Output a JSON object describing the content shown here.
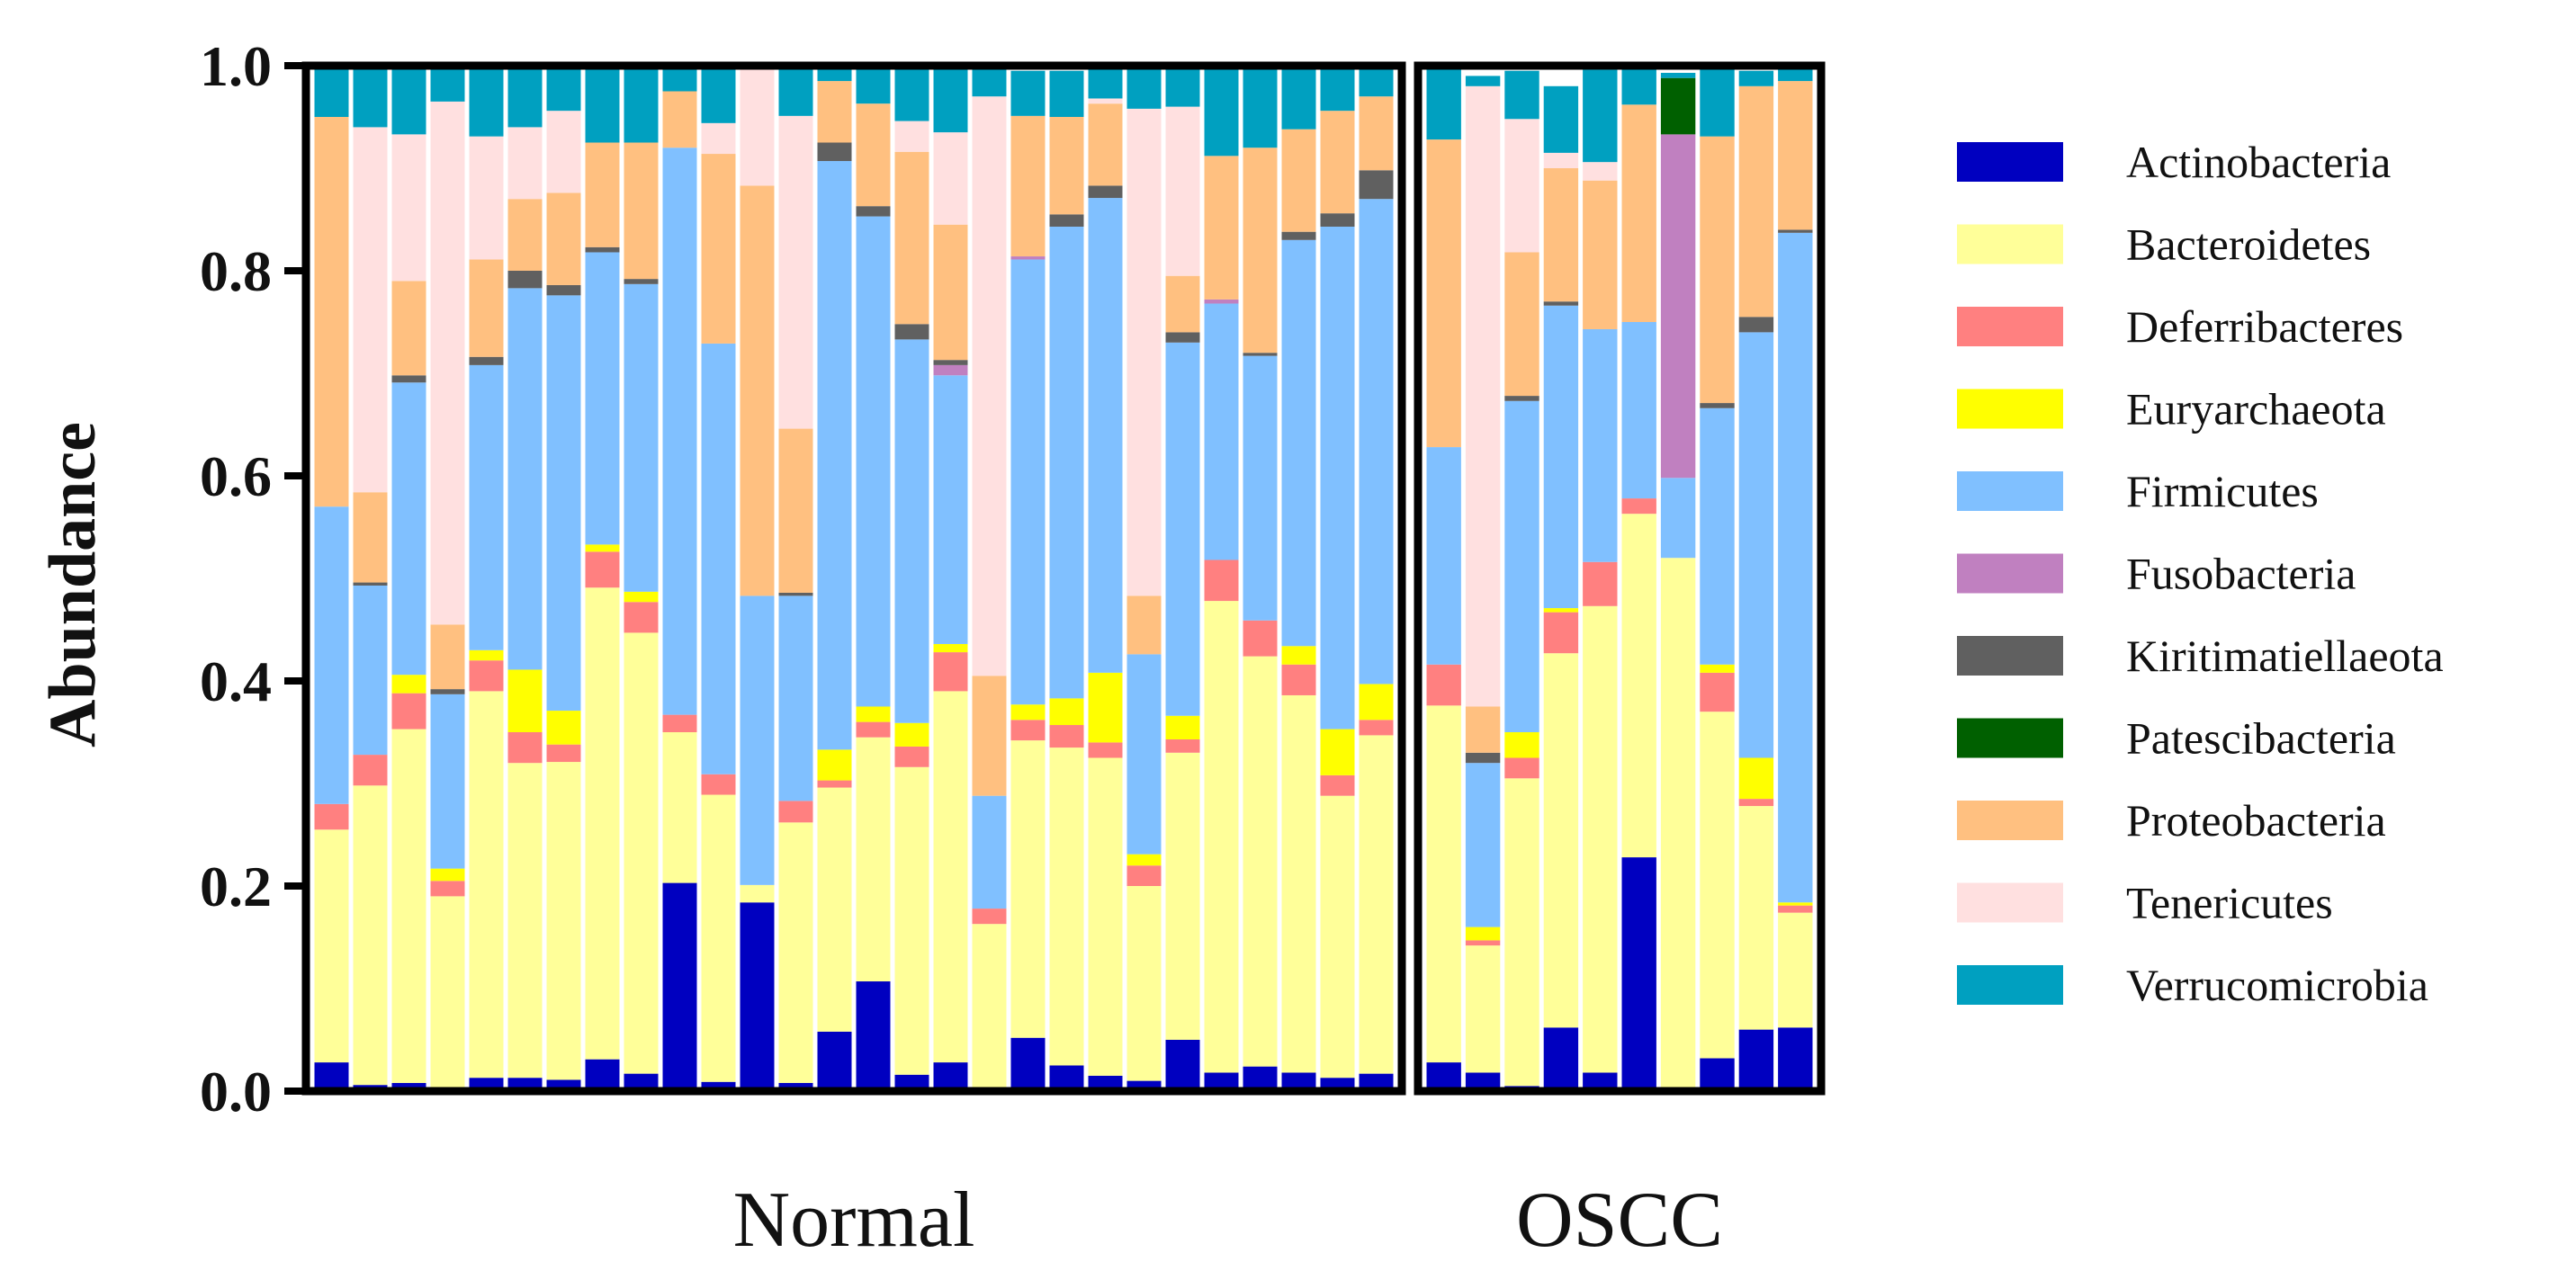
{
  "chart_data": {
    "type": "bar",
    "stacked": true,
    "ylabel": "Abundance",
    "ylim": [
      0,
      1.0
    ],
    "yticks": [
      "0.0",
      "0.2",
      "0.4",
      "0.6",
      "0.8",
      "1.0"
    ],
    "groups": [
      {
        "name": "Normal",
        "count": 28
      },
      {
        "name": "OSCC",
        "count": 10
      }
    ],
    "legend_position": "right",
    "series": [
      {
        "name": "Actinobacteria",
        "color": "#0000C0"
      },
      {
        "name": "Bacteroidetes",
        "color": "#FFFF99"
      },
      {
        "name": "Deferribacteres",
        "color": "#FF8080"
      },
      {
        "name": "Euryarchaeota",
        "color": "#FFFF00"
      },
      {
        "name": "Firmicutes",
        "color": "#80C0FF"
      },
      {
        "name": "Fusobacteria",
        "color": "#C080C0"
      },
      {
        "name": "Kiritimatiellaeota",
        "color": "#606060"
      },
      {
        "name": "Patescibacteria",
        "color": "#006000"
      },
      {
        "name": "Proteobacteria",
        "color": "#FFC080"
      },
      {
        "name": "Tenericutes",
        "color": "#FFE0E0"
      },
      {
        "name": "Verrucomicrobia",
        "color": "#00A0C0"
      }
    ],
    "samples": [
      [
        0.028,
        0.227,
        0.025,
        0.0,
        0.29,
        0.0,
        0.0,
        0.0,
        0.38,
        0.0,
        0.05
      ],
      [
        0.006,
        0.292,
        0.03,
        0.0,
        0.165,
        0.0,
        0.003,
        0.0,
        0.088,
        0.356,
        0.06
      ],
      [
        0.008,
        0.345,
        0.035,
        0.018,
        0.285,
        0.0,
        0.007,
        0.0,
        0.092,
        0.143,
        0.067
      ],
      [
        0.003,
        0.187,
        0.015,
        0.012,
        0.17,
        0.0,
        0.005,
        0.0,
        0.063,
        0.51,
        0.035
      ],
      [
        0.013,
        0.377,
        0.03,
        0.01,
        0.278,
        0.0,
        0.008,
        0.0,
        0.095,
        0.12,
        0.069
      ],
      [
        0.013,
        0.307,
        0.03,
        0.061,
        0.372,
        0.0,
        0.017,
        0.0,
        0.07,
        0.07,
        0.06
      ],
      [
        0.011,
        0.31,
        0.017,
        0.033,
        0.405,
        0.0,
        0.01,
        0.0,
        0.09,
        0.08,
        0.044
      ],
      [
        0.031,
        0.46,
        0.035,
        0.007,
        0.285,
        0.0,
        0.005,
        0.0,
        0.102,
        0.0,
        0.075
      ],
      [
        0.017,
        0.43,
        0.03,
        0.01,
        0.3,
        0.0,
        0.005,
        0.0,
        0.133,
        0.0,
        0.075
      ],
      [
        0.203,
        0.147,
        0.017,
        0.0,
        0.553,
        0.0,
        0.0,
        0.0,
        0.055,
        0.0,
        0.025
      ],
      [
        0.009,
        0.28,
        0.02,
        0.0,
        0.42,
        0.0,
        0.0,
        0.0,
        0.185,
        0.03,
        0.056
      ],
      [
        0.184,
        0.017,
        0.0,
        0.0,
        0.282,
        0.0,
        0.0,
        0.0,
        0.4,
        0.117,
        0.0
      ],
      [
        0.008,
        0.254,
        0.021,
        0.0,
        0.2,
        0.0,
        0.003,
        0.0,
        0.16,
        0.305,
        0.049
      ],
      [
        0.058,
        0.238,
        0.007,
        0.03,
        0.574,
        0.0,
        0.018,
        0.0,
        0.06,
        0.0,
        0.015
      ],
      [
        0.107,
        0.238,
        0.015,
        0.015,
        0.478,
        0.0,
        0.01,
        0.0,
        0.1,
        0.0,
        0.037
      ],
      [
        0.016,
        0.3,
        0.02,
        0.023,
        0.374,
        0.0,
        0.015,
        0.0,
        0.168,
        0.03,
        0.054
      ],
      [
        0.028,
        0.362,
        0.038,
        0.008,
        0.262,
        0.01,
        0.005,
        0.0,
        0.132,
        0.09,
        0.065
      ],
      [
        0.0,
        0.163,
        0.015,
        0.0,
        0.11,
        0.0,
        0.0,
        0.0,
        0.117,
        0.565,
        0.03
      ],
      [
        0.052,
        0.29,
        0.02,
        0.015,
        0.434,
        0.003,
        0.0,
        0.0,
        0.137,
        0.0,
        0.044
      ],
      [
        0.025,
        0.31,
        0.022,
        0.026,
        0.46,
        0.0,
        0.012,
        0.0,
        0.095,
        0.0,
        0.045
      ],
      [
        0.015,
        0.31,
        0.015,
        0.068,
        0.463,
        0.0,
        0.012,
        0.0,
        0.08,
        0.005,
        0.032
      ],
      [
        0.01,
        0.19,
        0.02,
        0.011,
        0.195,
        0.0,
        0.0,
        0.0,
        0.057,
        0.475,
        0.04
      ],
      [
        0.05,
        0.28,
        0.013,
        0.023,
        0.364,
        0.0,
        0.01,
        0.0,
        0.055,
        0.165,
        0.037
      ],
      [
        0.018,
        0.46,
        0.04,
        0.0,
        0.25,
        0.004,
        0.0,
        0.0,
        0.14,
        0.0,
        0.088
      ],
      [
        0.024,
        0.4,
        0.035,
        0.0,
        0.258,
        0.0,
        0.003,
        0.0,
        0.2,
        0.0,
        0.08
      ],
      [
        0.018,
        0.368,
        0.03,
        0.018,
        0.396,
        0.0,
        0.008,
        0.0,
        0.1,
        0.0,
        0.062
      ],
      [
        0.013,
        0.275,
        0.02,
        0.045,
        0.49,
        0.0,
        0.013,
        0.0,
        0.1,
        0.0,
        0.044
      ],
      [
        0.017,
        0.33,
        0.015,
        0.035,
        0.473,
        0.0,
        0.028,
        0.0,
        0.072,
        0.0,
        0.03
      ],
      [
        0.028,
        0.348,
        0.04,
        0.0,
        0.212,
        0.0,
        0.0,
        0.0,
        0.3,
        0.0,
        0.072
      ],
      [
        0.018,
        0.124,
        0.005,
        0.013,
        0.16,
        0.0,
        0.01,
        0.0,
        0.045,
        0.605,
        0.01
      ],
      [
        0.005,
        0.3,
        0.02,
        0.025,
        0.323,
        0.0,
        0.005,
        0.0,
        0.14,
        0.13,
        0.047
      ],
      [
        0.062,
        0.365,
        0.04,
        0.004,
        0.295,
        0.0,
        0.004,
        0.0,
        0.13,
        0.015,
        0.065
      ],
      [
        0.018,
        0.455,
        0.043,
        0.0,
        0.227,
        0.0,
        0.0,
        0.0,
        0.145,
        0.018,
        0.09
      ],
      [
        0.228,
        0.335,
        0.015,
        0.0,
        0.172,
        0.0,
        0.0,
        0.0,
        0.212,
        0.0,
        0.035
      ],
      [
        0.0,
        0.52,
        0.0,
        0.0,
        0.078,
        0.335,
        0.0,
        0.055,
        0.0,
        0.0,
        0.005
      ],
      [
        0.032,
        0.338,
        0.038,
        0.008,
        0.25,
        0.0,
        0.005,
        0.0,
        0.26,
        0.0,
        0.066
      ],
      [
        0.06,
        0.218,
        0.007,
        0.04,
        0.415,
        0.0,
        0.015,
        0.0,
        0.225,
        0.0,
        0.015
      ],
      [
        0.062,
        0.112,
        0.007,
        0.003,
        0.653,
        0.0,
        0.003,
        0.0,
        0.145,
        0.0,
        0.013
      ]
    ]
  }
}
